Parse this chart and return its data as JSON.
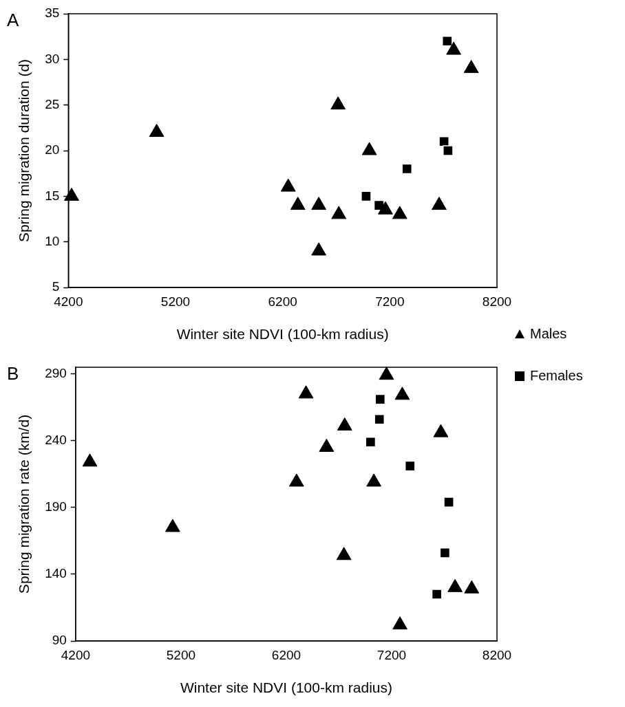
{
  "chart_data": [
    {
      "type": "scatter",
      "title": "A",
      "xlabel": "Winter site NDVI (100-km radius)",
      "ylabel": "Spring migration duration (d)",
      "xlim": [
        4200,
        8200
      ],
      "xticks": [
        4200,
        5200,
        6200,
        7200,
        8200
      ],
      "ylim": [
        5,
        35
      ],
      "yticks": [
        5,
        10,
        15,
        20,
        25,
        30,
        35
      ],
      "legend": "bottom right",
      "series": [
        {
          "name": "Males",
          "color": "#000000",
          "marker": "triangle",
          "x": [
            4230,
            5024,
            6252,
            6342,
            6537,
            6717,
            6724,
            6537,
            7009,
            7159,
            7293,
            7660,
            7796,
            7960
          ],
          "values": [
            15,
            22,
            16,
            14,
            14,
            25,
            13,
            9,
            20,
            13.5,
            13,
            14,
            31,
            29
          ]
        },
        {
          "name": "Females",
          "color": "#000000",
          "marker": "square",
          "x": [
            7736,
            6979,
            7099,
            7360,
            7706,
            7743
          ],
          "values": [
            32,
            15,
            14,
            18,
            21,
            20
          ]
        }
      ]
    },
    {
      "type": "scatter",
      "title": "B",
      "xlabel": "Winter site NDVI (100-km radius)",
      "ylabel": "Spring migration rate (km/d)",
      "xlim": [
        4200,
        8200
      ],
      "xticks": [
        4200,
        5200,
        6200,
        7200,
        8200
      ],
      "ylim": [
        90,
        295
      ],
      "yticks": [
        90,
        140,
        190,
        240,
        290
      ],
      "series": [
        {
          "color": "#000000",
          "marker": "triangle",
          "x": [
            4335,
            5121,
            6297,
            6387,
            6582,
            6754,
            6747,
            7031,
            7151,
            7301,
            7667,
            7802,
            7960,
            7279
          ],
          "values": [
            224,
            175,
            209,
            275,
            235,
            251,
            154,
            209,
            289,
            274,
            246,
            130,
            129,
            102
          ]
        },
        {
          "color": "#000000",
          "marker": "square",
          "x": [
            7091,
            7084,
            7000,
            7375,
            7743,
            7706,
            7629
          ],
          "values": [
            271,
            256,
            239,
            221,
            194,
            156,
            125
          ]
        }
      ]
    }
  ]
}
